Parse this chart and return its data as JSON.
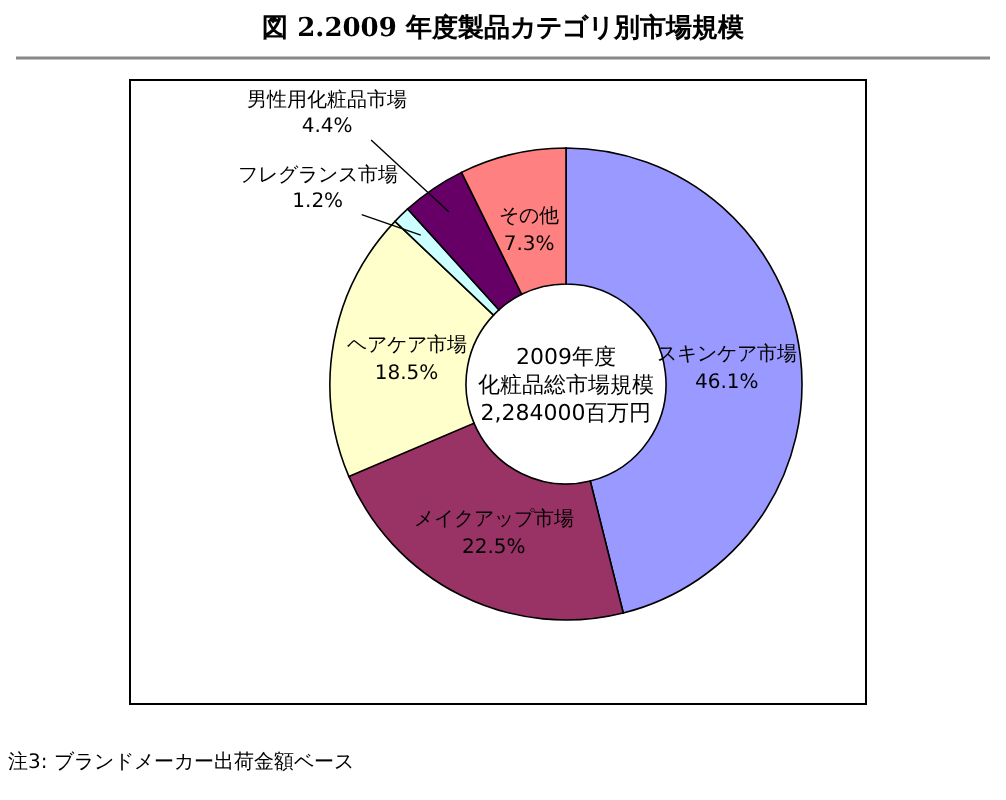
{
  "chart_data": {
    "type": "donut",
    "title": "図 2.2009 年度製品カテゴリ別市場規模",
    "categories": [
      "スキンケア市場",
      "メイクアップ市場",
      "ヘアケア市場",
      "フレグランス市場",
      "男性用化粧品市場",
      "その他"
    ],
    "values": [
      46.1,
      22.5,
      18.5,
      1.2,
      4.4,
      7.3
    ],
    "value_labels": [
      "46.1%",
      "22.5%",
      "18.5%",
      "1.2%",
      "4.4%",
      "7.3%"
    ],
    "colors": [
      "#9999ff",
      "#993366",
      "#ffffcc",
      "#ccffff",
      "#660066",
      "#ff8080"
    ],
    "annotations": [
      "2009年度",
      "化粧品総市場規模",
      "2,284000百万円",
      "注3: ブランドメーカー出荷金額ベース"
    ]
  }
}
